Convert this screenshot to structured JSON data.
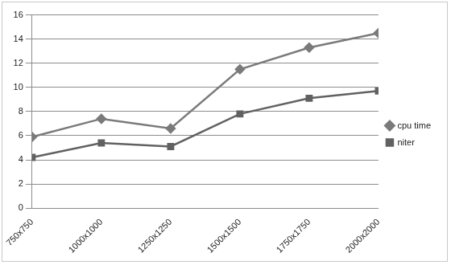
{
  "chart_data": {
    "type": "line",
    "categories": [
      "750x750",
      "1000x1000",
      "1250x1250",
      "1500x1500",
      "1750x1750",
      "2000x2000"
    ],
    "series": [
      {
        "name": "cpu time",
        "color": "#7a7a7a",
        "marker": "diamond",
        "values": [
          5.9,
          7.4,
          6.6,
          11.5,
          13.3,
          14.5
        ]
      },
      {
        "name": "niter",
        "color": "#616161",
        "marker": "square",
        "values": [
          4.2,
          5.4,
          5.1,
          7.8,
          9.1,
          9.7
        ]
      }
    ],
    "ylim": [
      0,
      16
    ],
    "yticks": [
      0,
      2,
      4,
      6,
      8,
      10,
      12,
      14,
      16
    ],
    "grid": true,
    "legend": "right"
  }
}
